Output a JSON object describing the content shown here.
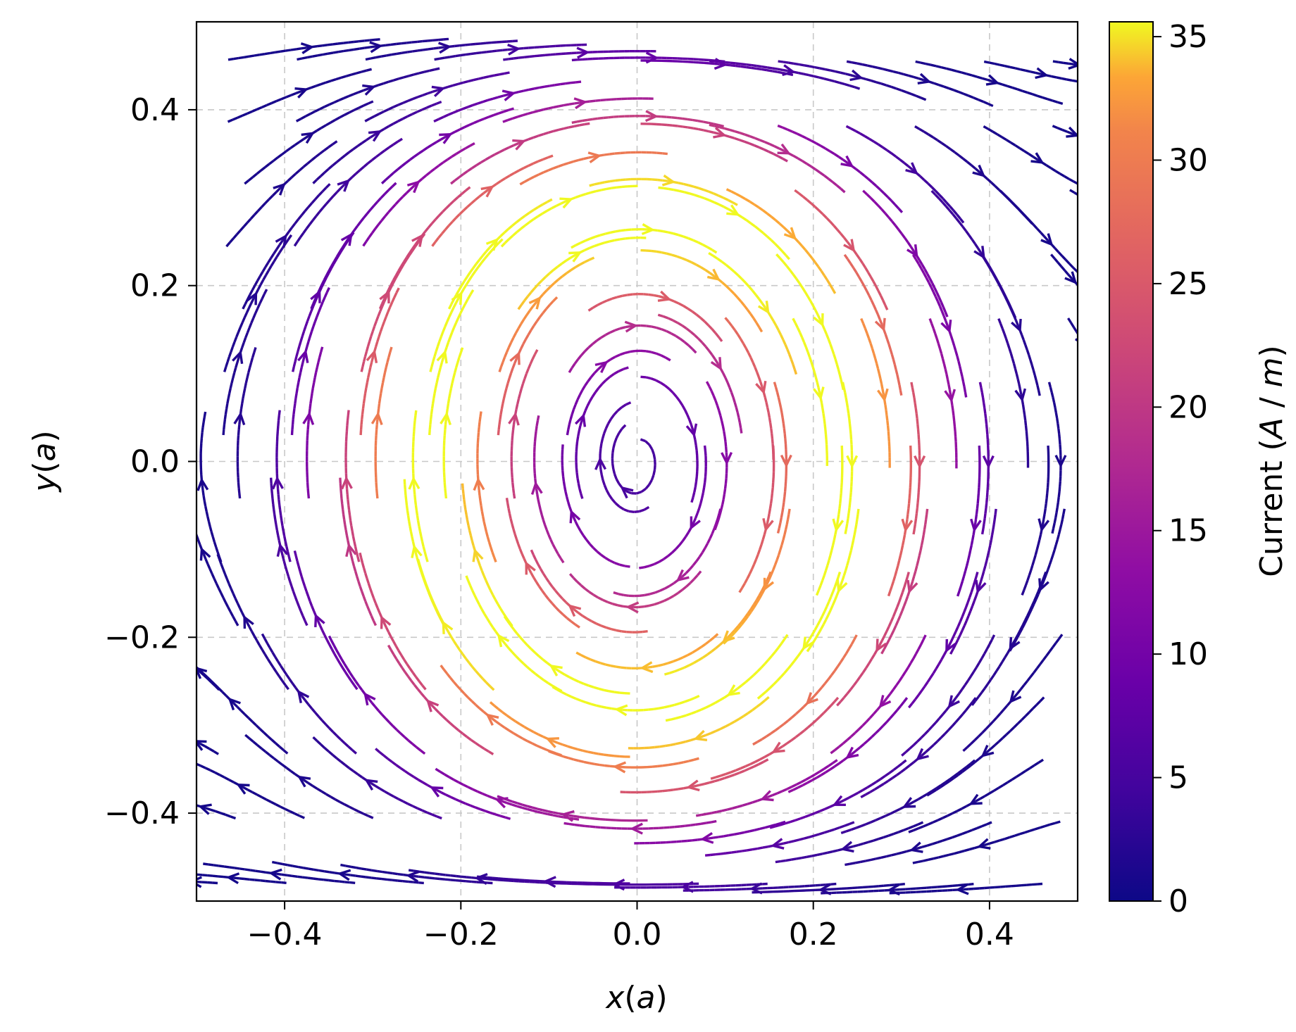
{
  "chart_data": {
    "type": "streamplot",
    "title": "",
    "xlabel": "x(a)",
    "ylabel": "y(a)",
    "xlim": [
      -0.5,
      0.5
    ],
    "ylim": [
      -0.5,
      0.5
    ],
    "xticks": [
      -0.4,
      -0.2,
      0.0,
      0.2,
      0.4
    ],
    "yticks": [
      -0.4,
      -0.2,
      0.0,
      0.2,
      0.4
    ],
    "xtick_labels": [
      "−0.4",
      "−0.2",
      "0.0",
      "0.2",
      "0.4"
    ],
    "ytick_labels": [
      "−0.4",
      "−0.2",
      "0.0",
      "0.2",
      "0.4"
    ],
    "grid": true,
    "colormap": "plasma",
    "colorbar": {
      "label": "Current  (A / m)",
      "range": [
        0,
        35.6
      ],
      "ticks": [
        0,
        5,
        10,
        15,
        20,
        25,
        30,
        35
      ],
      "tick_labels": [
        "0",
        "5",
        "10",
        "15",
        "20",
        "25",
        "30",
        "35"
      ]
    },
    "field": {
      "description_values": "single clockwise vortex centered at origin; flow +x along top, -x along bottom",
      "center": [
        0.0,
        0.0
      ],
      "max_current": 35.6,
      "ring_peak_x": 0.24,
      "edge_current": 0
    }
  }
}
